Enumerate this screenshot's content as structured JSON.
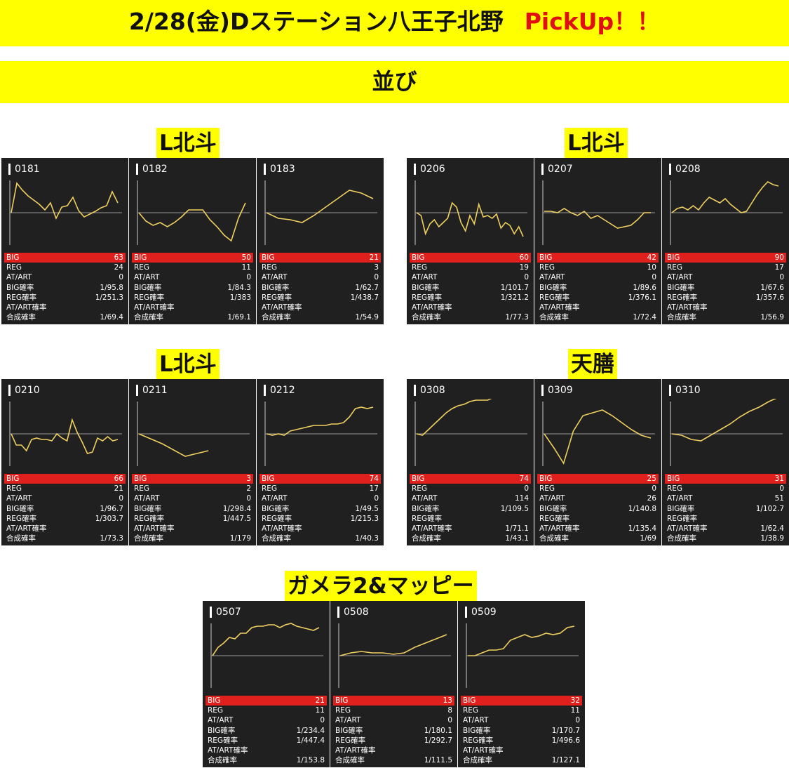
{
  "header": {
    "title": "2/28(金)Dステーション八王子北野",
    "highlight": "PickUp！！",
    "subtitle": "並び"
  },
  "colors": {
    "banner": "#ffff00",
    "highlight": "#e01010",
    "panel_bg": "#202020",
    "line": "#f0d060",
    "big_row": "#e0201c"
  },
  "stat_labels": [
    "BIG",
    "REG",
    "AT/ART",
    "BIG確率",
    "REG確率",
    "AT/ART確率",
    "合成確率"
  ],
  "groups": [
    {
      "label": "L北斗",
      "machines": [
        {
          "id": "0181",
          "stats": [
            "63",
            "24",
            "0",
            "1/95.8",
            "1/251.3",
            "",
            "1/69.4"
          ]
        },
        {
          "id": "0182",
          "stats": [
            "50",
            "11",
            "0",
            "1/84.3",
            "1/383",
            "",
            "1/69.1"
          ]
        },
        {
          "id": "0183",
          "stats": [
            "21",
            "3",
            "0",
            "1/62.7",
            "1/438.7",
            "",
            "1/54.9"
          ]
        }
      ]
    },
    {
      "label": "L北斗",
      "machines": [
        {
          "id": "0206",
          "stats": [
            "60",
            "19",
            "0",
            "1/101.7",
            "1/321.2",
            "",
            "1/77.3"
          ]
        },
        {
          "id": "0207",
          "stats": [
            "42",
            "10",
            "0",
            "1/89.6",
            "1/376.1",
            "",
            "1/72.4"
          ]
        },
        {
          "id": "0208",
          "stats": [
            "90",
            "17",
            "0",
            "1/67.6",
            "1/357.6",
            "",
            "1/56.9"
          ]
        }
      ]
    },
    {
      "label": "L北斗",
      "machines": [
        {
          "id": "0210",
          "stats": [
            "66",
            "21",
            "0",
            "1/96.7",
            "1/303.7",
            "",
            "1/73.3"
          ]
        },
        {
          "id": "0211",
          "stats": [
            "3",
            "2",
            "0",
            "1/298.4",
            "1/447.5",
            "",
            "1/179"
          ]
        },
        {
          "id": "0212",
          "stats": [
            "74",
            "17",
            "0",
            "1/49.5",
            "1/215.3",
            "",
            "1/40.3"
          ]
        }
      ]
    },
    {
      "label": "天膳",
      "machines": [
        {
          "id": "0308",
          "stats": [
            "74",
            "0",
            "114",
            "1/109.5",
            "",
            "1/71.1",
            "1/43.1"
          ]
        },
        {
          "id": "0309",
          "stats": [
            "25",
            "0",
            "26",
            "1/140.8",
            "",
            "1/135.4",
            "1/69"
          ]
        },
        {
          "id": "0310",
          "stats": [
            "31",
            "0",
            "51",
            "1/102.7",
            "",
            "1/62.4",
            "1/38.9"
          ]
        }
      ]
    },
    {
      "label": "ガメラ2&マッピー",
      "machines": [
        {
          "id": "0507",
          "stats": [
            "21",
            "11",
            "0",
            "1/234.4",
            "1/447.4",
            "",
            "1/153.8"
          ]
        },
        {
          "id": "0508",
          "stats": [
            "13",
            "8",
            "0",
            "1/180.1",
            "1/292.7",
            "",
            "1/111.5"
          ]
        },
        {
          "id": "0509",
          "stats": [
            "32",
            "11",
            "0",
            "1/170.7",
            "1/496.6",
            "",
            "1/127.1"
          ]
        }
      ]
    }
  ],
  "chart_data": [
    {
      "type": "line",
      "machine": "0181",
      "x": [
        0,
        1,
        2,
        3,
        4,
        5,
        6,
        7,
        8,
        9,
        10,
        11,
        12,
        13,
        14,
        15,
        16,
        17,
        18,
        19
      ],
      "y": [
        0,
        42,
        32,
        24,
        18,
        12,
        4,
        14,
        -8,
        8,
        10,
        22,
        3,
        -6,
        -2,
        2,
        7,
        10,
        30,
        14
      ]
    },
    {
      "type": "line",
      "machine": "0182",
      "x": [
        0,
        1,
        2,
        3,
        4,
        5,
        6,
        7,
        8,
        9,
        10,
        11,
        12,
        13,
        14,
        15
      ],
      "y": [
        0,
        -12,
        -18,
        -14,
        -20,
        -14,
        -6,
        4,
        4,
        4,
        -10,
        -20,
        -32,
        -40,
        -8,
        14
      ]
    },
    {
      "type": "line",
      "machine": "0183",
      "x": [
        0,
        1,
        2,
        3,
        4,
        5,
        6,
        7,
        8,
        9
      ],
      "y": [
        0,
        -8,
        -10,
        -14,
        -4,
        8,
        20,
        32,
        28,
        20
      ]
    },
    {
      "type": "line",
      "machine": "0206",
      "x": [
        0,
        1,
        2,
        3,
        4,
        5,
        6,
        7,
        8,
        9,
        10,
        11,
        12,
        13,
        14,
        15,
        16,
        17,
        18,
        19,
        20,
        21,
        22,
        23,
        24
      ],
      "y": [
        0,
        -4,
        -30,
        -16,
        -10,
        -20,
        -14,
        -8,
        14,
        8,
        -14,
        -26,
        -4,
        -16,
        12,
        -6,
        -4,
        -8,
        -2,
        -22,
        -14,
        -18,
        -30,
        -20,
        -34
      ]
    },
    {
      "type": "line",
      "machine": "0207",
      "x": [
        0,
        1,
        2,
        3,
        4,
        5,
        6,
        7,
        8,
        9,
        10,
        11,
        12,
        13,
        14,
        15,
        16
      ],
      "y": [
        2,
        2,
        0,
        6,
        0,
        -4,
        2,
        -8,
        -4,
        -10,
        -16,
        -22,
        -20,
        -18,
        -10,
        0,
        0
      ]
    },
    {
      "type": "line",
      "machine": "0208",
      "x": [
        0,
        1,
        2,
        3,
        4,
        5,
        6,
        7,
        8,
        9,
        10,
        11,
        12,
        13,
        14,
        15,
        16,
        17,
        18,
        19,
        20
      ],
      "y": [
        0,
        6,
        8,
        4,
        10,
        4,
        14,
        22,
        18,
        14,
        20,
        12,
        6,
        0,
        2,
        14,
        26,
        36,
        44,
        40,
        38
      ]
    },
    {
      "type": "line",
      "machine": "0210",
      "x": [
        0,
        1,
        2,
        3,
        4,
        5,
        6,
        7,
        8,
        9,
        10,
        11,
        12,
        13,
        14,
        15,
        16,
        17,
        18,
        19,
        20,
        21
      ],
      "y": [
        0,
        -16,
        -16,
        -24,
        -8,
        -6,
        -8,
        -8,
        -10,
        0,
        -6,
        -10,
        20,
        2,
        -12,
        -28,
        -26,
        -6,
        -10,
        -4,
        -10,
        -8
      ]
    },
    {
      "type": "line",
      "machine": "0211",
      "x": [
        0,
        1,
        2,
        3
      ],
      "y": [
        0,
        -14,
        -32,
        -24
      ]
    },
    {
      "type": "line",
      "machine": "0212",
      "x": [
        0,
        1,
        2,
        3,
        4,
        5,
        6,
        7,
        8,
        9,
        10,
        11,
        12,
        13,
        14,
        15,
        16,
        17,
        18
      ],
      "y": [
        0,
        -2,
        0,
        -2,
        4,
        6,
        8,
        10,
        12,
        12,
        12,
        14,
        14,
        16,
        24,
        36,
        38,
        36,
        38
      ]
    },
    {
      "type": "line",
      "machine": "0308",
      "x": [
        0,
        1,
        2,
        3,
        4,
        5,
        6,
        7,
        8,
        9,
        10,
        11,
        12,
        13,
        14,
        15,
        16,
        17,
        18
      ],
      "y": [
        0,
        -2,
        6,
        14,
        22,
        30,
        36,
        40,
        42,
        46,
        48,
        48,
        48,
        52,
        52,
        54,
        54,
        56,
        56
      ]
    },
    {
      "type": "line",
      "machine": "0309",
      "x": [
        0,
        1,
        2,
        3,
        4,
        5,
        6,
        7,
        8,
        9,
        10,
        11
      ],
      "y": [
        0,
        -20,
        -42,
        4,
        26,
        30,
        34,
        26,
        16,
        6,
        -2,
        -6
      ]
    },
    {
      "type": "line",
      "machine": "0310",
      "x": [
        0,
        1,
        2,
        3,
        4,
        5,
        6,
        7,
        8,
        9,
        10,
        11
      ],
      "y": [
        0,
        -2,
        -8,
        -10,
        -2,
        6,
        14,
        24,
        32,
        38,
        46,
        52
      ]
    },
    {
      "type": "line",
      "machine": "0507",
      "x": [
        0,
        1,
        2,
        3,
        4,
        5,
        6,
        7,
        8,
        9,
        10,
        11,
        12,
        13,
        14,
        15,
        16,
        17,
        18,
        19
      ],
      "y": [
        0,
        12,
        18,
        26,
        24,
        32,
        32,
        40,
        42,
        42,
        44,
        44,
        40,
        44,
        46,
        42,
        40,
        38,
        36,
        40
      ]
    },
    {
      "type": "line",
      "machine": "0508",
      "x": [
        0,
        1,
        2,
        3,
        4,
        5,
        6,
        7,
        8,
        9,
        10
      ],
      "y": [
        0,
        4,
        6,
        4,
        4,
        2,
        4,
        12,
        18,
        24,
        30
      ]
    },
    {
      "type": "line",
      "machine": "0509",
      "x": [
        0,
        1,
        2,
        3,
        4,
        5,
        6,
        7,
        8,
        9,
        10,
        11,
        12,
        13,
        14,
        15
      ],
      "y": [
        0,
        0,
        4,
        8,
        8,
        10,
        22,
        26,
        30,
        26,
        28,
        32,
        30,
        32,
        40,
        42
      ]
    }
  ]
}
